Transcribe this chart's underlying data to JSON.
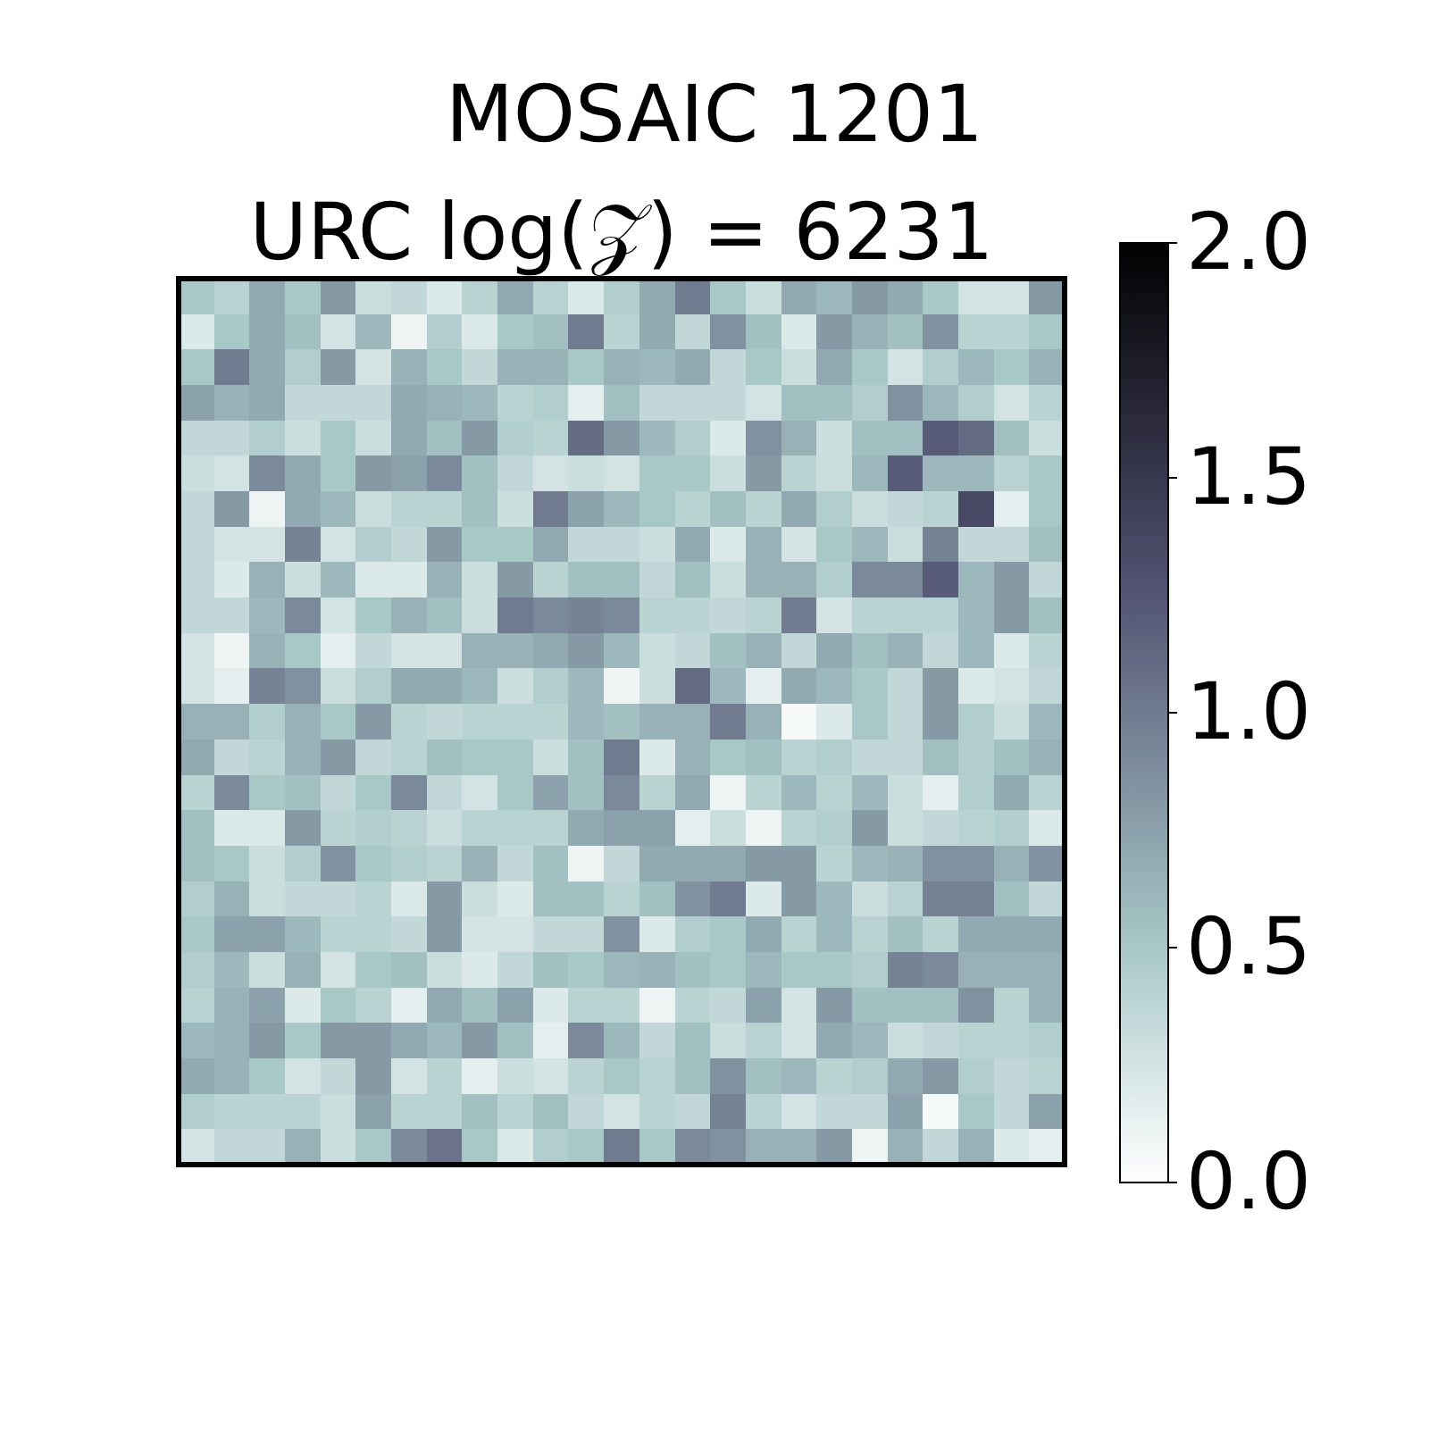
{
  "chart_data": {
    "type": "heatmap",
    "title": "MOSAIC 1201",
    "subtitle": "URC log(𝒵) = 6231",
    "categories": [
      null,
      null,
      null,
      null,
      null,
      null,
      null,
      null,
      null,
      null,
      null,
      null,
      null,
      null,
      null,
      null,
      null,
      null,
      null,
      null,
      null,
      null,
      null,
      null,
      null
    ],
    "y_categories": [
      null,
      null,
      null,
      null,
      null,
      null,
      null,
      null,
      null,
      null,
      null,
      null,
      null,
      null,
      null,
      null,
      null,
      null,
      null,
      null,
      null,
      null,
      null,
      null,
      null
    ],
    "clim": [
      0,
      2
    ],
    "cticks": [
      {
        "value": 0,
        "label": "0.0"
      },
      0.5,
      {
        "value": 1,
        "label": "1.0"
      },
      1.5,
      {
        "value": 2,
        "label": "2.0"
      }
    ],
    "cells": [
      [
        0.5,
        0.4,
        0.7,
        0.5,
        0.8,
        0.3,
        0.35,
        0.2,
        0.4,
        0.7,
        0.4,
        0.2,
        0.45,
        0.7,
        1.0,
        0.5,
        0.3,
        0.7,
        0.6,
        0.8,
        0.7,
        0.5,
        0.25,
        0.25,
        0.8
      ],
      [
        0.2,
        0.5,
        0.7,
        0.55,
        0.25,
        0.6,
        0.1,
        0.45,
        0.2,
        0.5,
        0.55,
        1.0,
        0.4,
        0.7,
        0.35,
        0.85,
        0.55,
        0.2,
        0.8,
        0.65,
        0.55,
        0.85,
        0.4,
        0.4,
        0.5
      ],
      [
        0.5,
        1.0,
        0.7,
        0.45,
        0.8,
        0.25,
        0.65,
        0.5,
        0.35,
        0.65,
        0.65,
        0.5,
        0.65,
        0.6,
        0.7,
        0.35,
        0.5,
        0.3,
        0.7,
        0.5,
        0.25,
        0.45,
        0.6,
        0.5,
        0.65
      ],
      [
        0.75,
        0.65,
        0.7,
        0.35,
        0.35,
        0.35,
        0.7,
        0.65,
        0.6,
        0.4,
        0.45,
        0.15,
        0.55,
        0.35,
        0.35,
        0.35,
        0.25,
        0.55,
        0.55,
        0.45,
        0.85,
        0.6,
        0.45,
        0.25,
        0.4
      ],
      [
        0.35,
        0.35,
        0.45,
        0.3,
        0.5,
        0.3,
        0.7,
        0.55,
        0.8,
        0.45,
        0.4,
        1.1,
        0.8,
        0.6,
        0.45,
        0.2,
        0.85,
        0.65,
        0.3,
        0.55,
        0.55,
        1.2,
        1.1,
        0.55,
        0.3
      ],
      [
        0.3,
        0.25,
        0.9,
        0.7,
        0.5,
        0.8,
        0.75,
        0.9,
        0.55,
        0.35,
        0.25,
        0.3,
        0.25,
        0.5,
        0.5,
        0.3,
        0.8,
        0.4,
        0.3,
        0.6,
        1.2,
        0.6,
        0.6,
        0.4,
        0.5
      ],
      [
        0.35,
        0.8,
        0.1,
        0.7,
        0.6,
        0.3,
        0.4,
        0.4,
        0.55,
        0.3,
        1.0,
        0.75,
        0.6,
        0.5,
        0.4,
        0.55,
        0.4,
        0.7,
        0.45,
        0.3,
        0.35,
        0.4,
        1.35,
        0.15,
        0.5
      ],
      [
        0.35,
        0.25,
        0.25,
        0.95,
        0.25,
        0.45,
        0.35,
        0.8,
        0.5,
        0.5,
        0.7,
        0.35,
        0.35,
        0.3,
        0.7,
        0.2,
        0.65,
        0.25,
        0.5,
        0.6,
        0.3,
        0.95,
        0.35,
        0.35,
        0.55
      ],
      [
        0.35,
        0.2,
        0.65,
        0.3,
        0.6,
        0.2,
        0.2,
        0.65,
        0.3,
        0.8,
        0.4,
        0.55,
        0.55,
        0.35,
        0.55,
        0.3,
        0.65,
        0.65,
        0.45,
        0.9,
        0.9,
        1.2,
        0.6,
        0.8,
        0.35
      ],
      [
        0.35,
        0.35,
        0.6,
        0.9,
        0.25,
        0.5,
        0.65,
        0.55,
        0.3,
        1.0,
        0.9,
        0.95,
        0.9,
        0.4,
        0.4,
        0.35,
        0.4,
        1.0,
        0.25,
        0.4,
        0.4,
        0.4,
        0.6,
        0.8,
        0.55
      ],
      [
        0.25,
        0.1,
        0.65,
        0.5,
        0.15,
        0.35,
        0.25,
        0.25,
        0.65,
        0.65,
        0.7,
        0.8,
        0.6,
        0.3,
        0.35,
        0.55,
        0.65,
        0.35,
        0.7,
        0.55,
        0.65,
        0.35,
        0.6,
        0.2,
        0.4
      ],
      [
        0.25,
        0.15,
        0.95,
        0.85,
        0.3,
        0.45,
        0.7,
        0.7,
        0.6,
        0.3,
        0.45,
        0.6,
        0.1,
        0.3,
        1.1,
        0.6,
        0.15,
        0.7,
        0.6,
        0.5,
        0.35,
        0.8,
        0.2,
        0.25,
        0.35
      ],
      [
        0.65,
        0.65,
        0.45,
        0.65,
        0.5,
        0.8,
        0.4,
        0.35,
        0.4,
        0.4,
        0.4,
        0.6,
        0.55,
        0.65,
        0.65,
        1.0,
        0.65,
        0.05,
        0.2,
        0.5,
        0.35,
        0.8,
        0.45,
        0.3,
        0.6
      ],
      [
        0.7,
        0.35,
        0.4,
        0.65,
        0.8,
        0.35,
        0.4,
        0.55,
        0.5,
        0.5,
        0.3,
        0.55,
        1.0,
        0.2,
        0.65,
        0.5,
        0.55,
        0.4,
        0.45,
        0.35,
        0.35,
        0.55,
        0.45,
        0.55,
        0.65
      ],
      [
        0.4,
        0.9,
        0.5,
        0.55,
        0.35,
        0.5,
        0.9,
        0.35,
        0.25,
        0.5,
        0.75,
        0.55,
        0.9,
        0.4,
        0.7,
        0.1,
        0.4,
        0.6,
        0.4,
        0.6,
        0.3,
        0.15,
        0.45,
        0.7,
        0.4
      ],
      [
        0.55,
        0.2,
        0.2,
        0.8,
        0.4,
        0.45,
        0.4,
        0.3,
        0.4,
        0.4,
        0.4,
        0.7,
        0.75,
        0.75,
        0.15,
        0.3,
        0.1,
        0.4,
        0.45,
        0.8,
        0.3,
        0.35,
        0.4,
        0.45,
        0.2
      ],
      [
        0.55,
        0.5,
        0.3,
        0.45,
        0.85,
        0.5,
        0.45,
        0.4,
        0.65,
        0.35,
        0.55,
        0.1,
        0.35,
        0.7,
        0.7,
        0.7,
        0.8,
        0.8,
        0.4,
        0.6,
        0.65,
        0.85,
        0.85,
        0.65,
        0.85
      ],
      [
        0.45,
        0.65,
        0.3,
        0.35,
        0.35,
        0.4,
        0.2,
        0.8,
        0.3,
        0.2,
        0.55,
        0.55,
        0.4,
        0.55,
        0.85,
        1.0,
        0.2,
        0.8,
        0.6,
        0.3,
        0.4,
        0.95,
        0.95,
        0.55,
        0.35
      ],
      [
        0.5,
        0.75,
        0.75,
        0.6,
        0.4,
        0.4,
        0.35,
        0.8,
        0.25,
        0.25,
        0.35,
        0.35,
        0.85,
        0.2,
        0.45,
        0.5,
        0.7,
        0.4,
        0.6,
        0.4,
        0.55,
        0.4,
        0.7,
        0.7,
        0.7
      ],
      [
        0.45,
        0.6,
        0.3,
        0.65,
        0.25,
        0.5,
        0.55,
        0.3,
        0.2,
        0.35,
        0.55,
        0.5,
        0.6,
        0.65,
        0.55,
        0.5,
        0.6,
        0.5,
        0.5,
        0.45,
        0.95,
        0.9,
        0.65,
        0.65,
        0.65
      ],
      [
        0.4,
        0.65,
        0.75,
        0.2,
        0.5,
        0.4,
        0.15,
        0.7,
        0.55,
        0.75,
        0.2,
        0.4,
        0.4,
        0.1,
        0.4,
        0.35,
        0.75,
        0.25,
        0.8,
        0.55,
        0.55,
        0.55,
        0.85,
        0.4,
        0.65
      ],
      [
        0.6,
        0.65,
        0.8,
        0.5,
        0.8,
        0.8,
        0.7,
        0.6,
        0.8,
        0.55,
        0.15,
        0.9,
        0.6,
        0.35,
        0.55,
        0.3,
        0.4,
        0.25,
        0.7,
        0.6,
        0.3,
        0.35,
        0.4,
        0.4,
        0.45
      ],
      [
        0.7,
        0.65,
        0.5,
        0.25,
        0.35,
        0.8,
        0.25,
        0.4,
        0.15,
        0.3,
        0.25,
        0.4,
        0.5,
        0.4,
        0.55,
        0.85,
        0.55,
        0.6,
        0.4,
        0.45,
        0.7,
        0.8,
        0.45,
        0.35,
        0.4
      ],
      [
        0.45,
        0.4,
        0.4,
        0.4,
        0.3,
        0.75,
        0.4,
        0.4,
        0.55,
        0.4,
        0.55,
        0.35,
        0.25,
        0.4,
        0.35,
        0.95,
        0.4,
        0.25,
        0.35,
        0.35,
        0.75,
        0.05,
        0.5,
        0.35,
        0.75
      ],
      [
        0.25,
        0.35,
        0.35,
        0.65,
        0.3,
        0.5,
        0.9,
        1.05,
        0.5,
        0.2,
        0.45,
        0.5,
        1.0,
        0.5,
        0.9,
        0.85,
        0.65,
        0.65,
        0.8,
        0.1,
        0.65,
        0.35,
        0.65,
        0.2,
        0.15
      ]
    ]
  }
}
